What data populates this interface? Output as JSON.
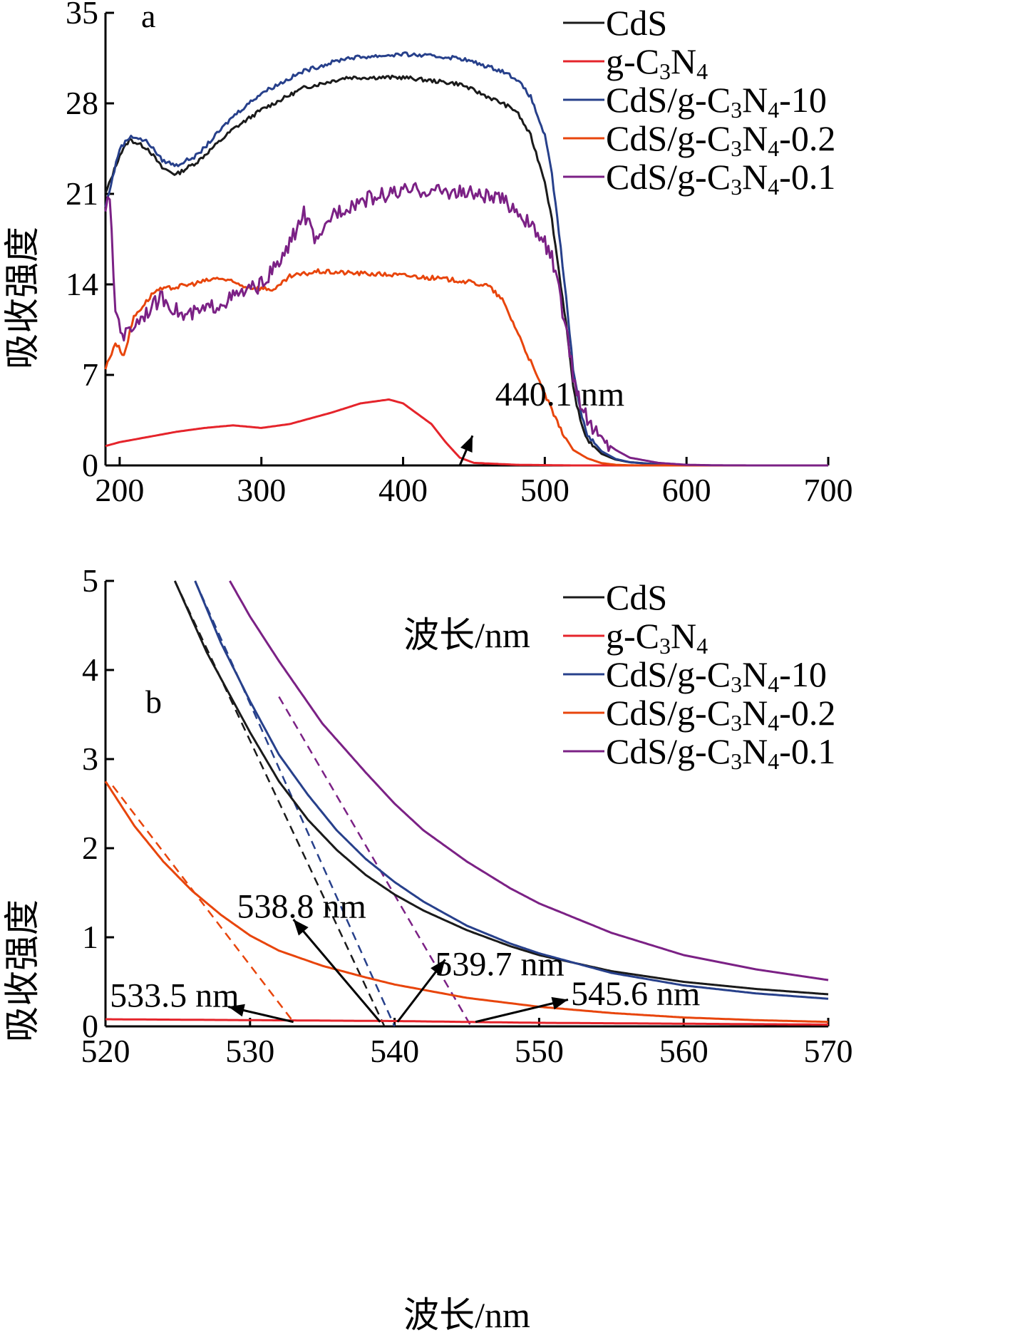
{
  "chart_data": [
    {
      "id": "a",
      "type": "line",
      "panel_label": "a",
      "xlabel": "波长/nm",
      "ylabel": "吸收强度",
      "xlim": [
        190,
        700
      ],
      "ylim": [
        0,
        35
      ],
      "xticks": [
        200,
        300,
        400,
        500,
        600,
        700
      ],
      "yticks": [
        0,
        7,
        14,
        21,
        28,
        35
      ],
      "legend": "top-right",
      "series": [
        {
          "name": "CdS",
          "color": "#1a1a1a",
          "noise": 0.3,
          "points": [
            [
              190,
              21
            ],
            [
              200,
              24
            ],
            [
              207,
              25.2
            ],
            [
              220,
              24.5
            ],
            [
              230,
              23
            ],
            [
              240,
              22.5
            ],
            [
              255,
              23.5
            ],
            [
              280,
              26
            ],
            [
              300,
              27.5
            ],
            [
              330,
              29.2
            ],
            [
              360,
              30
            ],
            [
              400,
              30
            ],
            [
              440,
              29.5
            ],
            [
              470,
              28
            ],
            [
              480,
              27.4
            ],
            [
              490,
              25.5
            ],
            [
              500,
              22
            ],
            [
              505,
              19
            ],
            [
              510,
              15
            ],
            [
              515,
              11
            ],
            [
              520,
              6
            ],
            [
              525,
              3.5
            ],
            [
              530,
              2
            ],
            [
              540,
              0.9
            ],
            [
              550,
              0.45
            ],
            [
              560,
              0.25
            ],
            [
              580,
              0.08
            ],
            [
              600,
              0.02
            ],
            [
              620,
              0
            ],
            [
              700,
              0
            ]
          ]
        },
        {
          "name": "g-C3N4",
          "color": "#e5242b",
          "noise": 0,
          "points": [
            [
              190,
              1.5
            ],
            [
              200,
              1.8
            ],
            [
              220,
              2.2
            ],
            [
              240,
              2.6
            ],
            [
              260,
              2.9
            ],
            [
              280,
              3.1
            ],
            [
              300,
              2.9
            ],
            [
              320,
              3.2
            ],
            [
              350,
              4.1
            ],
            [
              370,
              4.8
            ],
            [
              390,
              5.1
            ],
            [
              400,
              4.8
            ],
            [
              420,
              3.2
            ],
            [
              430,
              1.8
            ],
            [
              440,
              0.6
            ],
            [
              450,
              0.2
            ],
            [
              480,
              0.05
            ],
            [
              520,
              0
            ],
            [
              700,
              0
            ]
          ]
        },
        {
          "name": "CdS/g-C3N4-10",
          "color": "#27408b",
          "noise": 0.3,
          "points": [
            [
              190,
              20
            ],
            [
              200,
              24.5
            ],
            [
              208,
              25.5
            ],
            [
              220,
              25
            ],
            [
              230,
              23.6
            ],
            [
              240,
              23.2
            ],
            [
              255,
              24
            ],
            [
              280,
              27
            ],
            [
              300,
              28.8
            ],
            [
              330,
              30.5
            ],
            [
              360,
              31.5
            ],
            [
              400,
              31.8
            ],
            [
              440,
              31.5
            ],
            [
              470,
              30.5
            ],
            [
              480,
              29.9
            ],
            [
              490,
              28.5
            ],
            [
              500,
              25.5
            ],
            [
              505,
              22.5
            ],
            [
              510,
              18
            ],
            [
              515,
              13
            ],
            [
              520,
              7.5
            ],
            [
              525,
              4.3
            ],
            [
              530,
              2.4
            ],
            [
              540,
              1.1
            ],
            [
              550,
              0.5
            ],
            [
              560,
              0.25
            ],
            [
              580,
              0.07
            ],
            [
              600,
              0.02
            ],
            [
              620,
              0
            ],
            [
              700,
              0
            ]
          ]
        },
        {
          "name": "CdS/g-C3N4-0.2",
          "color": "#e8450c",
          "noise": 0.35,
          "points": [
            [
              190,
              7.5
            ],
            [
              197,
              9.5
            ],
            [
              203,
              8.5
            ],
            [
              210,
              11.5
            ],
            [
              225,
              13.5
            ],
            [
              250,
              14
            ],
            [
              270,
              14.5
            ],
            [
              290,
              13.8
            ],
            [
              310,
              13.6
            ],
            [
              320,
              14.6
            ],
            [
              340,
              15
            ],
            [
              360,
              14.9
            ],
            [
              400,
              14.7
            ],
            [
              440,
              14.3
            ],
            [
              460,
              13.9
            ],
            [
              470,
              12.8
            ],
            [
              480,
              10.5
            ],
            [
              490,
              8
            ],
            [
              500,
              5.5
            ],
            [
              510,
              3
            ],
            [
              520,
              1.2
            ],
            [
              530,
              0.55
            ],
            [
              540,
              0.18
            ],
            [
              550,
              0.05
            ],
            [
              560,
              0.01
            ],
            [
              580,
              0
            ],
            [
              700,
              0
            ]
          ]
        },
        {
          "name": "CdS/g-C3N4-0.1",
          "color": "#7b2185",
          "noise": 1.2,
          "points": [
            [
              190,
              20
            ],
            [
              193,
              20.5
            ],
            [
              197,
              12
            ],
            [
              203,
              10
            ],
            [
              215,
              11.5
            ],
            [
              230,
              13
            ],
            [
              245,
              11.5
            ],
            [
              260,
              12
            ],
            [
              280,
              13
            ],
            [
              300,
              14
            ],
            [
              315,
              16
            ],
            [
              330,
              19.5
            ],
            [
              340,
              17
            ],
            [
              350,
              19.5
            ],
            [
              370,
              20.5
            ],
            [
              390,
              21
            ],
            [
              410,
              21.3
            ],
            [
              430,
              21.2
            ],
            [
              450,
              21
            ],
            [
              470,
              20.5
            ],
            [
              480,
              19.8
            ],
            [
              490,
              18.5
            ],
            [
              500,
              17.2
            ],
            [
              505,
              16
            ],
            [
              510,
              13.5
            ],
            [
              515,
              10.5
            ],
            [
              520,
              7
            ],
            [
              525,
              4.9
            ],
            [
              530,
              3.5
            ],
            [
              540,
              2
            ],
            [
              550,
              1.2
            ],
            [
              560,
              0.6
            ],
            [
              580,
              0.2
            ],
            [
              600,
              0.05
            ],
            [
              620,
              0.01
            ],
            [
              650,
              0
            ],
            [
              700,
              0
            ]
          ]
        }
      ],
      "annotations": [
        {
          "text": "440.1 nm",
          "at": [
            440,
            0
          ],
          "label_at": [
            465,
            5.5
          ]
        }
      ]
    },
    {
      "id": "b",
      "type": "line",
      "panel_label": "b",
      "xlabel": "波长/nm",
      "ylabel": "吸收强度",
      "xlim": [
        520,
        570
      ],
      "ylim": [
        0,
        5
      ],
      "xticks": [
        520,
        530,
        540,
        550,
        560,
        570
      ],
      "yticks": [
        0,
        1,
        2,
        3,
        4,
        5
      ],
      "legend": "top-right",
      "series": [
        {
          "name": "CdS",
          "color": "#1a1a1a",
          "points": [
            [
              524.8,
              5
            ],
            [
              527,
              4.2
            ],
            [
              530,
              3.3
            ],
            [
              532,
              2.75
            ],
            [
              534,
              2.32
            ],
            [
              536,
              1.98
            ],
            [
              538,
              1.7
            ],
            [
              540,
              1.48
            ],
            [
              542,
              1.3
            ],
            [
              545,
              1.08
            ],
            [
              548,
              0.9
            ],
            [
              550,
              0.8
            ],
            [
              555,
              0.62
            ],
            [
              560,
              0.5
            ],
            [
              565,
              0.42
            ],
            [
              570,
              0.36
            ]
          ]
        },
        {
          "name": "g-C3N4",
          "color": "#e5242b",
          "points": [
            [
              520,
              0.08
            ],
            [
              530,
              0.07
            ],
            [
              540,
              0.06
            ],
            [
              550,
              0.04
            ],
            [
              560,
              0.03
            ],
            [
              570,
              0.02
            ]
          ]
        },
        {
          "name": "CdS/g-C3N4-10",
          "color": "#27408b",
          "points": [
            [
              526.2,
              5
            ],
            [
              528,
              4.3
            ],
            [
              530,
              3.65
            ],
            [
              532,
              3.05
            ],
            [
              534,
              2.6
            ],
            [
              536,
              2.2
            ],
            [
              538,
              1.88
            ],
            [
              540,
              1.62
            ],
            [
              542,
              1.4
            ],
            [
              545,
              1.13
            ],
            [
              548,
              0.93
            ],
            [
              550,
              0.82
            ],
            [
              555,
              0.6
            ],
            [
              560,
              0.46
            ],
            [
              565,
              0.37
            ],
            [
              570,
              0.31
            ]
          ]
        },
        {
          "name": "CdS/g-C3N4-0.2",
          "color": "#e8450c",
          "points": [
            [
              520,
              2.75
            ],
            [
              522,
              2.25
            ],
            [
              524,
              1.85
            ],
            [
              526,
              1.52
            ],
            [
              528,
              1.25
            ],
            [
              530,
              1.02
            ],
            [
              532,
              0.85
            ],
            [
              535,
              0.68
            ],
            [
              538,
              0.55
            ],
            [
              540,
              0.47
            ],
            [
              545,
              0.32
            ],
            [
              550,
              0.22
            ],
            [
              555,
              0.15
            ],
            [
              560,
              0.1
            ],
            [
              565,
              0.07
            ],
            [
              570,
              0.05
            ]
          ]
        },
        {
          "name": "CdS/g-C3N4-0.1",
          "color": "#7b2185",
          "points": [
            [
              528.6,
              5
            ],
            [
              530,
              4.6
            ],
            [
              532,
              4.1
            ],
            [
              535,
              3.4
            ],
            [
              538,
              2.85
            ],
            [
              540,
              2.5
            ],
            [
              542,
              2.2
            ],
            [
              545,
              1.85
            ],
            [
              548,
              1.55
            ],
            [
              550,
              1.38
            ],
            [
              555,
              1.05
            ],
            [
              560,
              0.8
            ],
            [
              565,
              0.64
            ],
            [
              570,
              0.52
            ]
          ]
        }
      ],
      "tangents": [
        {
          "color": "#e8450c",
          "from": [
            520.5,
            2.7
          ],
          "to": [
            533,
            0.05
          ]
        },
        {
          "color": "#1a1a1a",
          "from": [
            524.8,
            5
          ],
          "to": [
            539.3,
            0
          ]
        },
        {
          "color": "#27408b",
          "from": [
            526.2,
            5
          ],
          "to": [
            540,
            0
          ]
        },
        {
          "color": "#7b2185",
          "from": [
            532,
            3.7
          ],
          "to": [
            545.3,
            0
          ]
        }
      ],
      "annotations": [
        {
          "text": "533.5 nm",
          "at": [
            528.5,
            0.22
          ],
          "tail": [
            533,
            0.05
          ],
          "label_at": [
            520.3,
            0.35
          ]
        },
        {
          "text": "538.8 nm",
          "at": [
            533,
            1.2
          ],
          "tail": [
            539,
            0.05
          ],
          "label_at": [
            529.1,
            1.35
          ]
        },
        {
          "text": "539.7 nm",
          "at": [
            543.5,
            0.75
          ],
          "tail": [
            540.2,
            0.05
          ],
          "label_at": [
            542.8,
            0.7
          ]
        },
        {
          "text": "545.6 nm",
          "at": [
            552,
            0.3
          ],
          "tail": [
            545.6,
            0.05
          ],
          "label_at": [
            552.2,
            0.37
          ]
        }
      ]
    }
  ]
}
